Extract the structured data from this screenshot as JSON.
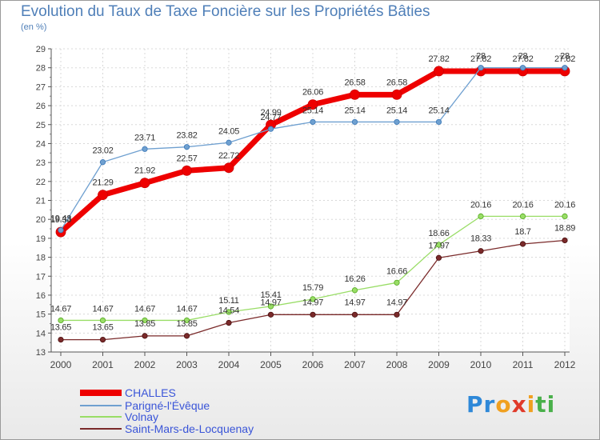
{
  "header": {
    "title": "Evolution du Taux de Taxe Foncière sur les Propriétés Bâties",
    "subtitle": "(en %)"
  },
  "chart_data": {
    "type": "line",
    "title": "Evolution du Taux de Taxe Foncière sur les Propriétés Bâties",
    "ylabel": "(en %)",
    "x": [
      2000,
      2001,
      2002,
      2003,
      2004,
      2005,
      2006,
      2007,
      2008,
      2009,
      2010,
      2011,
      2012
    ],
    "ylim": [
      13,
      29
    ],
    "yticks": [
      13,
      14,
      15,
      16,
      17,
      18,
      19,
      20,
      21,
      22,
      23,
      24,
      25,
      26,
      27,
      28,
      29
    ],
    "grid": true,
    "legend_position": "bottom-left",
    "series": [
      {
        "name": "CHALLES",
        "color": "#ee0000",
        "values": [
          19.33,
          21.29,
          21.92,
          22.57,
          22.72,
          24.99,
          26.06,
          26.58,
          26.58,
          27.82,
          27.82,
          27.82,
          27.82
        ]
      },
      {
        "name": "Parigné-l'Évêque",
        "color": "#6fa0d0",
        "values": [
          19.43,
          23.02,
          23.71,
          23.82,
          24.05,
          24.77,
          25.14,
          25.14,
          25.14,
          25.14,
          28,
          28,
          28
        ]
      },
      {
        "name": "Volnay",
        "color": "#99dd66",
        "values": [
          14.67,
          14.67,
          14.67,
          14.67,
          15.11,
          15.41,
          15.79,
          16.26,
          16.66,
          18.66,
          20.16,
          20.16,
          20.16
        ]
      },
      {
        "name": "Saint-Mars-de-Locquenay",
        "color": "#7a2a2a",
        "values": [
          13.65,
          13.65,
          13.85,
          13.85,
          14.54,
          14.97,
          14.97,
          14.97,
          14.97,
          17.97,
          18.33,
          18.7,
          18.89
        ]
      }
    ]
  },
  "logo": {
    "text": "Proxiti"
  }
}
